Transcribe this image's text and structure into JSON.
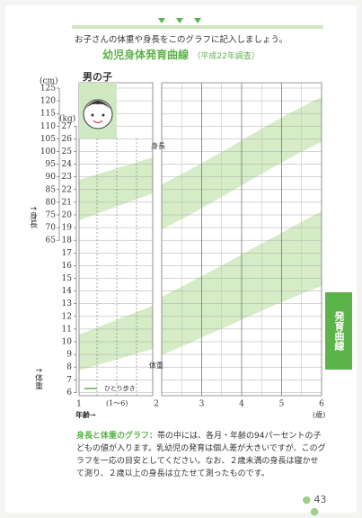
{
  "header": {
    "instruction": "お子さんの体重や身長をこのグラフに記入しましょう。",
    "title": "幼児身体発育曲線",
    "subtitle": "（平成22年調査）"
  },
  "chart": {
    "sex_label": "男の子",
    "height_unit": "(cm)",
    "weight_unit": "(kg)",
    "height_ticks": [
      "125",
      "120",
      "115",
      "110",
      "105",
      "100",
      "95",
      "90",
      "85",
      "80",
      "75",
      "70",
      "65"
    ],
    "weight_ticks": [
      "27",
      "26",
      "25",
      "24",
      "23",
      "22",
      "21",
      "20",
      "19",
      "18",
      "17",
      "16",
      "15",
      "14",
      "13",
      "12",
      "11",
      "10",
      "9",
      "8",
      "7",
      "6"
    ],
    "height_axis_label": "↑身長",
    "weight_axis_label": "↑体重",
    "age_ticks": [
      "1",
      "2",
      "3",
      "4",
      "5",
      "6"
    ],
    "age_range_note": "(1〜6)",
    "x_axis_label": "年齢→",
    "x_unit": "(歳)",
    "height_band_label": "身長",
    "weight_band_label": "体重",
    "walking_label": "ひとり歩き"
  },
  "side_tab": "発育曲線",
  "caption": {
    "lead": "身長と体重のグラフ：",
    "body": "帯の中には、各月・年齢の94パーセントの子どもの値が入ります。乳幼児の発育は個人差が大きいですが、このグラフを一応の目安としてください。なお、２歳未満の身長は寝かせて測り、２歳以上の身長は立たせて測ったものです。"
  },
  "page_number": "43"
}
